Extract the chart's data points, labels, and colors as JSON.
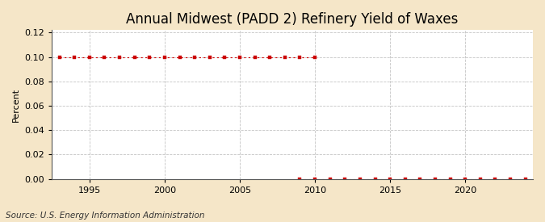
{
  "title": "Annual Midwest (PADD 2) Refinery Yield of Waxes",
  "ylabel": "Percent",
  "source": "Source: U.S. Energy Information Administration",
  "fig_background_color": "#f5e6c8",
  "plot_background_color": "#ffffff",
  "grid_h_color": "#aaaaaa",
  "grid_v_color": "#aaaaaa",
  "line_color": "#cc0000",
  "marker_color": "#cc0000",
  "xlim": [
    1992.5,
    2024.5
  ],
  "ylim": [
    0.0,
    0.122
  ],
  "yticks": [
    0.0,
    0.02,
    0.04,
    0.06,
    0.08,
    0.1,
    0.12
  ],
  "xticks": [
    1995,
    2000,
    2005,
    2010,
    2015,
    2020
  ],
  "years_high": [
    1993,
    1994,
    1995,
    1996,
    1997,
    1998,
    1999,
    2000,
    2001,
    2002,
    2003,
    2004,
    2005,
    2006,
    2007,
    2008,
    2009,
    2010
  ],
  "values_high": [
    0.1,
    0.1,
    0.1,
    0.1,
    0.1,
    0.1,
    0.1,
    0.1,
    0.1,
    0.1,
    0.1,
    0.1,
    0.1,
    0.1,
    0.1,
    0.1,
    0.1,
    0.1
  ],
  "years_low": [
    2009,
    2010,
    2011,
    2012,
    2013,
    2014,
    2015,
    2016,
    2017,
    2018,
    2019,
    2020,
    2021,
    2022,
    2023,
    2024
  ],
  "values_low": [
    0.0,
    0.0,
    0.0,
    0.0,
    0.0,
    0.0,
    0.0,
    0.0,
    0.0,
    0.0,
    0.0,
    0.0,
    0.0,
    0.0,
    0.0,
    0.0
  ],
  "title_fontsize": 12,
  "ylabel_fontsize": 8,
  "tick_fontsize": 8,
  "source_fontsize": 7.5
}
